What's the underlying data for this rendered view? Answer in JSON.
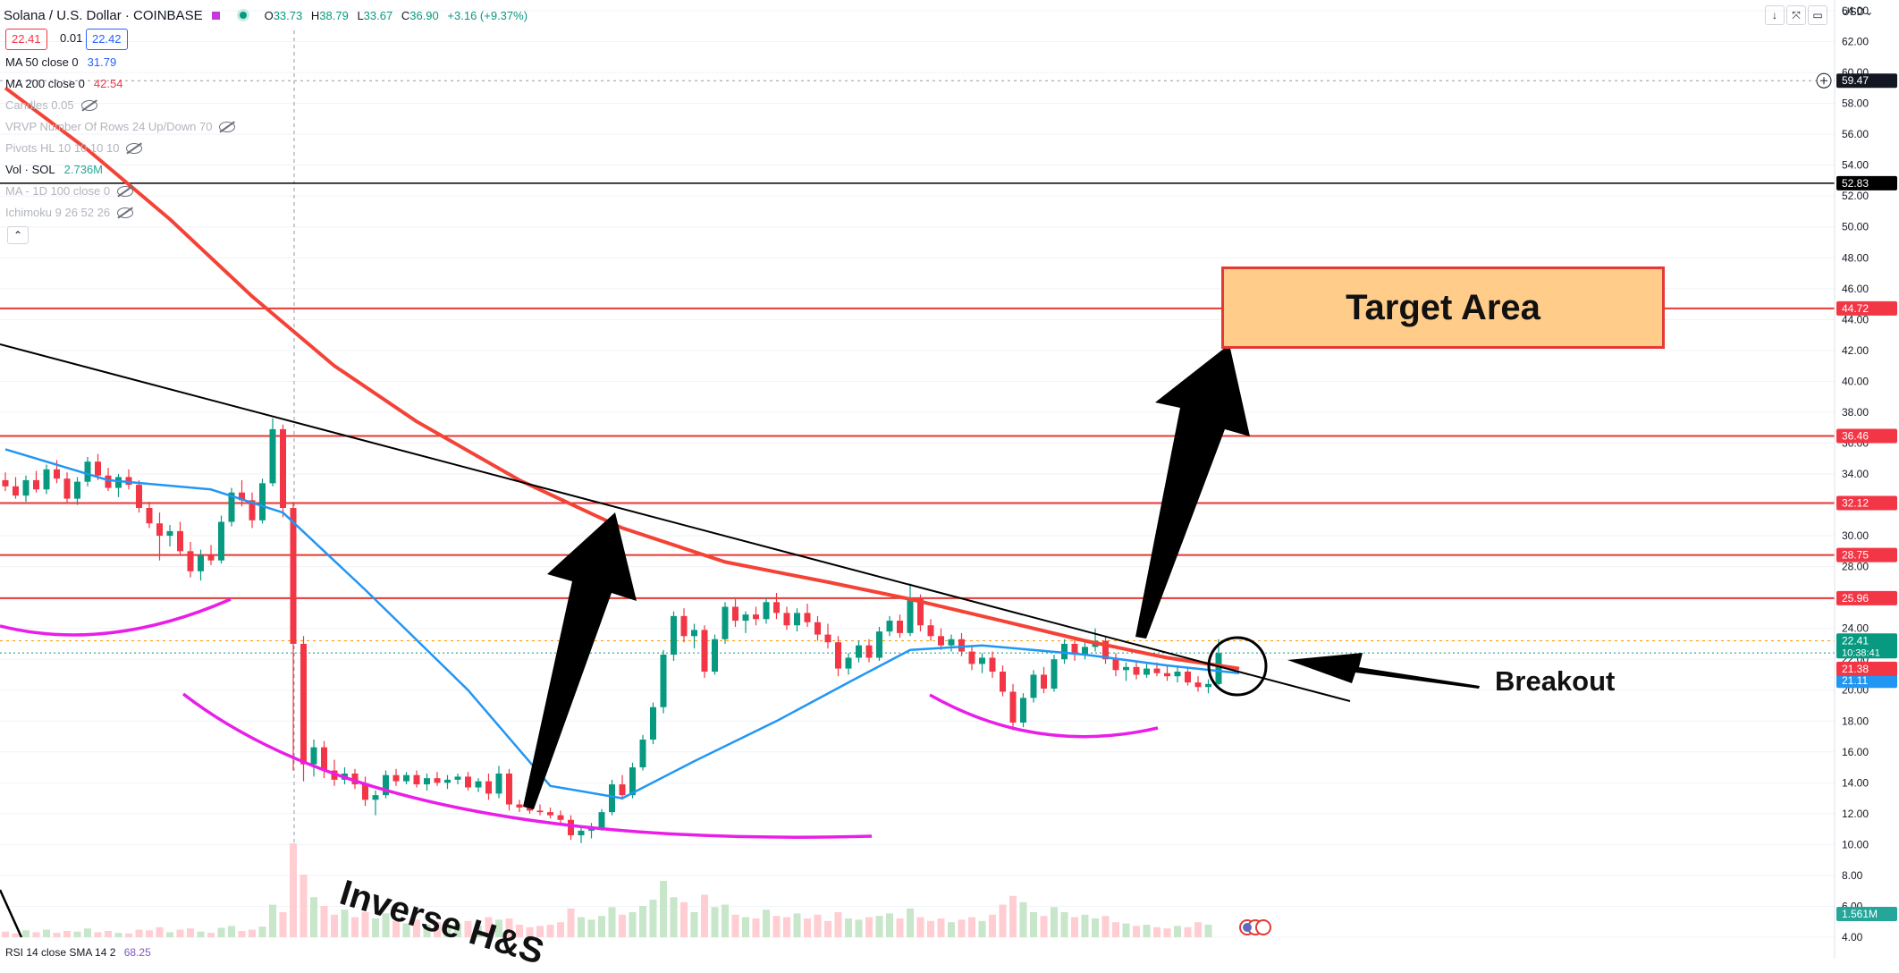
{
  "header": {
    "symbol": "Solana / U.S. Dollar · COINBASE",
    "open_label": "O",
    "open": "33.73",
    "high_label": "H",
    "high": "38.79",
    "low_label": "L",
    "low": "33.67",
    "close_label": "C",
    "close": "36.90",
    "change": "+3.16 (+9.37%)",
    "bid": "22.41",
    "spread": "0.01",
    "ask": "22.42",
    "currency": "USD"
  },
  "legend": [
    {
      "label": "MA 50 close 0",
      "value": "31.79",
      "color": "#2962ff",
      "hidden": false
    },
    {
      "label": "MA 200 close 0",
      "value": "42.54",
      "color": "#f23645",
      "hidden": false
    },
    {
      "label": "Candles 0.05",
      "value": "",
      "color": "",
      "hidden": true
    },
    {
      "label": "VRVP Number Of Rows 24 Up/Down 70",
      "value": "",
      "color": "",
      "hidden": true
    },
    {
      "label": "Pivots HL 10 10 10 10",
      "value": "",
      "color": "",
      "hidden": true
    },
    {
      "label": "Vol · SOL",
      "value": "2.736M",
      "color": "#26a69a",
      "hidden": false
    },
    {
      "label": "MA - 1D 100 close 0",
      "value": "",
      "color": "",
      "hidden": true
    },
    {
      "label": "Ichimoku 9 26 52 26",
      "value": "",
      "color": "",
      "hidden": true
    }
  ],
  "collapse_icon": "chevron-up-icon",
  "rsi": {
    "label": "RSI 14 close SMA 14 2",
    "value": "68.25"
  },
  "annotations": {
    "target": "Target Area",
    "breakout": "Breakout",
    "pattern": "Inverse H&S"
  },
  "colors": {
    "up": "#089981",
    "down": "#f23645",
    "ma50": "#2196f3",
    "ma200": "#f44336",
    "hs": "#e91ee8",
    "level": "#e53935",
    "target_fill": "#ffcc8a"
  },
  "chart_data": {
    "type": "candlestick",
    "title": "Solana / U.S. Dollar · COINBASE",
    "ylim": [
      4,
      64
    ],
    "y_ticks": [
      64,
      62,
      60,
      58,
      56,
      54,
      52,
      50,
      48,
      46,
      44,
      42,
      40,
      38,
      36,
      34,
      32,
      30,
      28,
      26,
      24,
      22,
      20,
      18,
      16,
      14,
      12,
      10,
      8,
      6,
      4
    ],
    "y_tick_labels": [
      "64.00",
      "62.00",
      "60.00",
      "58.00",
      "56.00",
      "54.00",
      "52.00",
      "50.00",
      "48.00",
      "46.00",
      "44.00",
      "42.00",
      "40.00",
      "38.00",
      "36.00",
      "34.00",
      "32.00",
      "30.00",
      "28.00",
      "26.00",
      "24.00",
      "22.00",
      "20.00",
      "18.00",
      "16.00",
      "14.00",
      "12.00",
      "10.00",
      "8.00",
      "6.00",
      "4.00"
    ],
    "horizontal_levels": [
      {
        "value": 59.47,
        "label": "59.47",
        "style": "dashed-grey"
      },
      {
        "value": 52.83,
        "label": "52.83",
        "style": "black"
      },
      {
        "value": 44.72,
        "label": "44.72",
        "style": "red"
      },
      {
        "value": 36.46,
        "label": "36.46",
        "style": "red"
      },
      {
        "value": 32.12,
        "label": "32.12",
        "style": "red"
      },
      {
        "value": 28.75,
        "label": "28.75",
        "style": "red"
      },
      {
        "value": 25.96,
        "label": "25.96",
        "style": "red"
      }
    ],
    "price_tags": [
      {
        "value": 22.41,
        "label": "22.41",
        "sub": "10:38:41",
        "color": "#089981"
      },
      {
        "value": 21.38,
        "label": "21.38",
        "color": "#f23645"
      },
      {
        "value": 21.11,
        "label": "21.11",
        "color": "#2196f3"
      }
    ],
    "volume_tag": "1.561M",
    "candles": [
      [
        33.6,
        34.1,
        32.9,
        33.2
      ],
      [
        33.2,
        33.8,
        32.4,
        32.6
      ],
      [
        32.6,
        33.9,
        32.2,
        33.6
      ],
      [
        33.6,
        34.2,
        32.8,
        33.0
      ],
      [
        33.0,
        34.6,
        32.7,
        34.3
      ],
      [
        34.3,
        34.9,
        33.4,
        33.7
      ],
      [
        33.7,
        34.1,
        32.1,
        32.4
      ],
      [
        32.4,
        33.8,
        32.0,
        33.5
      ],
      [
        33.5,
        35.1,
        33.2,
        34.8
      ],
      [
        34.8,
        35.3,
        33.6,
        33.9
      ],
      [
        33.9,
        34.4,
        32.9,
        33.1
      ],
      [
        33.1,
        34.0,
        32.5,
        33.8
      ],
      [
        33.8,
        34.3,
        33.0,
        33.3
      ],
      [
        33.3,
        33.6,
        31.5,
        31.8
      ],
      [
        31.8,
        32.2,
        30.5,
        30.8
      ],
      [
        30.8,
        31.5,
        28.4,
        30.0
      ],
      [
        30.0,
        30.7,
        29.3,
        30.3
      ],
      [
        30.3,
        30.9,
        28.7,
        29.0
      ],
      [
        29.0,
        29.6,
        27.3,
        27.7
      ],
      [
        27.7,
        29.1,
        27.1,
        28.7
      ],
      [
        28.7,
        29.4,
        28.1,
        28.4
      ],
      [
        28.4,
        31.3,
        28.2,
        30.9
      ],
      [
        30.9,
        33.1,
        30.6,
        32.8
      ],
      [
        32.8,
        33.6,
        31.9,
        32.3
      ],
      [
        32.3,
        32.8,
        30.5,
        31.0
      ],
      [
        31.0,
        33.7,
        30.8,
        33.4
      ],
      [
        33.4,
        37.6,
        33.2,
        36.9
      ],
      [
        36.9,
        37.2,
        31.2,
        31.8
      ],
      [
        31.8,
        32.2,
        14.8,
        23.0
      ],
      [
        23.0,
        23.5,
        14.1,
        15.2
      ],
      [
        15.2,
        16.8,
        14.4,
        16.3
      ],
      [
        16.3,
        16.7,
        14.3,
        14.8
      ],
      [
        14.8,
        15.5,
        13.8,
        14.2
      ],
      [
        14.2,
        15.0,
        13.9,
        14.6
      ],
      [
        14.6,
        14.9,
        13.6,
        13.9
      ],
      [
        13.9,
        14.4,
        12.5,
        12.9
      ],
      [
        12.9,
        13.5,
        11.9,
        13.2
      ],
      [
        13.2,
        14.8,
        13.0,
        14.5
      ],
      [
        14.5,
        14.9,
        13.8,
        14.1
      ],
      [
        14.1,
        14.7,
        13.9,
        14.5
      ],
      [
        14.5,
        14.8,
        13.7,
        13.9
      ],
      [
        13.9,
        14.6,
        13.5,
        14.3
      ],
      [
        14.3,
        14.7,
        13.8,
        14.0
      ],
      [
        14.0,
        14.5,
        13.6,
        14.2
      ],
      [
        14.2,
        14.6,
        13.9,
        14.4
      ],
      [
        14.4,
        14.7,
        13.5,
        13.7
      ],
      [
        13.7,
        14.3,
        13.4,
        14.1
      ],
      [
        14.1,
        14.6,
        12.9,
        13.3
      ],
      [
        13.3,
        15.1,
        13.0,
        14.6
      ],
      [
        14.6,
        14.9,
        12.2,
        12.6
      ],
      [
        12.6,
        12.9,
        12.1,
        12.4
      ],
      [
        12.4,
        12.8,
        12.0,
        12.2
      ],
      [
        12.2,
        12.6,
        11.9,
        12.1
      ],
      [
        12.1,
        12.4,
        11.7,
        11.9
      ],
      [
        11.9,
        12.2,
        11.3,
        11.6
      ],
      [
        11.6,
        11.9,
        10.3,
        10.6
      ],
      [
        10.6,
        11.2,
        10.1,
        10.9
      ],
      [
        10.9,
        11.4,
        10.4,
        11.1
      ],
      [
        11.1,
        12.3,
        10.9,
        12.1
      ],
      [
        12.1,
        14.2,
        11.9,
        13.9
      ],
      [
        13.9,
        14.5,
        12.9,
        13.2
      ],
      [
        13.2,
        15.3,
        13.0,
        15.0
      ],
      [
        15.0,
        17.1,
        14.8,
        16.8
      ],
      [
        16.8,
        19.2,
        16.5,
        18.9
      ],
      [
        18.9,
        22.6,
        18.5,
        22.3
      ],
      [
        22.3,
        25.1,
        21.9,
        24.8
      ],
      [
        24.8,
        25.3,
        23.1,
        23.5
      ],
      [
        23.5,
        24.3,
        22.7,
        23.9
      ],
      [
        23.9,
        24.2,
        20.8,
        21.2
      ],
      [
        21.2,
        23.6,
        21.0,
        23.3
      ],
      [
        23.3,
        25.7,
        23.0,
        25.4
      ],
      [
        25.4,
        25.9,
        24.1,
        24.5
      ],
      [
        24.5,
        25.1,
        23.7,
        24.9
      ],
      [
        24.9,
        25.4,
        24.2,
        24.6
      ],
      [
        24.6,
        26.0,
        24.3,
        25.7
      ],
      [
        25.7,
        26.3,
        24.6,
        25.0
      ],
      [
        25.0,
        25.4,
        23.9,
        24.2
      ],
      [
        24.2,
        25.3,
        23.8,
        25.0
      ],
      [
        25.0,
        25.6,
        24.1,
        24.4
      ],
      [
        24.4,
        24.8,
        23.2,
        23.6
      ],
      [
        23.6,
        24.3,
        22.7,
        23.1
      ],
      [
        23.1,
        23.5,
        20.9,
        21.4
      ],
      [
        21.4,
        22.4,
        21.0,
        22.1
      ],
      [
        22.1,
        23.2,
        21.8,
        22.9
      ],
      [
        22.9,
        23.3,
        21.8,
        22.1
      ],
      [
        22.1,
        24.1,
        21.9,
        23.8
      ],
      [
        23.8,
        24.8,
        23.5,
        24.5
      ],
      [
        24.5,
        24.9,
        23.4,
        23.7
      ],
      [
        23.7,
        26.9,
        23.5,
        25.9
      ],
      [
        25.9,
        26.2,
        23.8,
        24.2
      ],
      [
        24.2,
        24.6,
        23.2,
        23.5
      ],
      [
        23.5,
        24.0,
        22.6,
        22.9
      ],
      [
        22.9,
        23.6,
        22.5,
        23.3
      ],
      [
        23.3,
        23.7,
        22.2,
        22.5
      ],
      [
        22.5,
        22.9,
        21.3,
        21.7
      ],
      [
        21.7,
        22.4,
        21.1,
        22.1
      ],
      [
        22.1,
        22.5,
        20.8,
        21.2
      ],
      [
        21.2,
        21.6,
        19.6,
        19.9
      ],
      [
        19.9,
        20.4,
        17.4,
        17.9
      ],
      [
        17.9,
        19.8,
        17.6,
        19.5
      ],
      [
        19.5,
        21.3,
        19.2,
        21.0
      ],
      [
        21.0,
        21.5,
        19.8,
        20.1
      ],
      [
        20.1,
        22.3,
        19.9,
        22.0
      ],
      [
        22.0,
        23.3,
        21.7,
        23.0
      ],
      [
        23.0,
        23.4,
        21.9,
        22.3
      ],
      [
        22.3,
        23.1,
        22.0,
        22.8
      ],
      [
        22.8,
        24.0,
        22.5,
        23.2
      ],
      [
        23.2,
        23.5,
        21.7,
        22.0
      ],
      [
        22.0,
        22.4,
        20.9,
        21.3
      ],
      [
        21.3,
        21.8,
        20.6,
        21.5
      ],
      [
        21.5,
        21.9,
        20.7,
        21.0
      ],
      [
        21.0,
        21.7,
        20.8,
        21.4
      ],
      [
        21.4,
        21.8,
        20.9,
        21.1
      ],
      [
        21.1,
        21.6,
        20.6,
        20.9
      ],
      [
        20.9,
        21.5,
        20.5,
        21.2
      ],
      [
        21.2,
        21.5,
        20.3,
        20.5
      ],
      [
        20.5,
        20.9,
        19.9,
        20.2
      ],
      [
        20.2,
        20.7,
        19.8,
        20.4
      ],
      [
        20.4,
        23.3,
        20.3,
        22.4
      ]
    ],
    "volume": [
      0.45,
      0.3,
      0.55,
      0.4,
      0.6,
      0.35,
      0.5,
      0.45,
      0.7,
      0.4,
      0.5,
      0.35,
      0.3,
      0.6,
      0.55,
      0.8,
      0.4,
      0.6,
      0.7,
      0.45,
      0.35,
      0.75,
      0.9,
      0.5,
      0.6,
      0.85,
      2.6,
      2.0,
      7.5,
      5.0,
      3.2,
      2.5,
      1.8,
      2.2,
      1.6,
      2.0,
      1.5,
      1.9,
      1.3,
      1.1,
      1.4,
      1.0,
      1.2,
      0.9,
      1.1,
      1.3,
      0.9,
      1.6,
      1.4,
      1.5,
      1.0,
      0.8,
      0.9,
      1.0,
      1.2,
      2.3,
      1.6,
      1.4,
      1.7,
      2.4,
      1.8,
      2.0,
      2.5,
      3.0,
      4.5,
      3.2,
      2.8,
      2.0,
      3.4,
      2.4,
      2.6,
      1.8,
      1.6,
      1.5,
      2.2,
      1.7,
      1.6,
      1.9,
      1.5,
      1.8,
      1.3,
      2.0,
      1.5,
      1.4,
      1.6,
      1.7,
      1.9,
      1.5,
      2.3,
      1.6,
      1.3,
      1.5,
      1.2,
      1.4,
      1.6,
      1.3,
      1.8,
      2.6,
      3.3,
      2.8,
      2.0,
      1.7,
      2.4,
      2.0,
      1.6,
      1.8,
      1.5,
      1.7,
      1.2,
      1.1,
      0.9,
      1.0,
      0.8,
      0.7,
      0.9,
      0.8,
      1.2,
      1.0
    ],
    "series": [
      {
        "name": "MA 50 close 0",
        "x": [
          0,
          10,
          20,
          27,
          35,
          45,
          53,
          60,
          67,
          75,
          82,
          88,
          95,
          105,
          113,
          120
        ],
        "values": [
          35.6,
          33.6,
          33.0,
          31.5,
          26.5,
          20.0,
          13.8,
          13.0,
          15.4,
          18.0,
          20.5,
          22.6,
          22.9,
          22.3,
          21.6,
          21.1
        ]
      },
      {
        "name": "MA 200 close 0",
        "x": [
          0,
          8,
          16,
          24,
          32,
          40,
          50,
          60,
          70,
          80,
          88,
          95,
          105,
          113,
          120
        ],
        "values": [
          59.0,
          55.0,
          50.5,
          45.5,
          41.0,
          37.4,
          33.6,
          30.5,
          28.3,
          27.0,
          25.9,
          24.8,
          23.2,
          22.1,
          21.4
        ]
      }
    ]
  }
}
